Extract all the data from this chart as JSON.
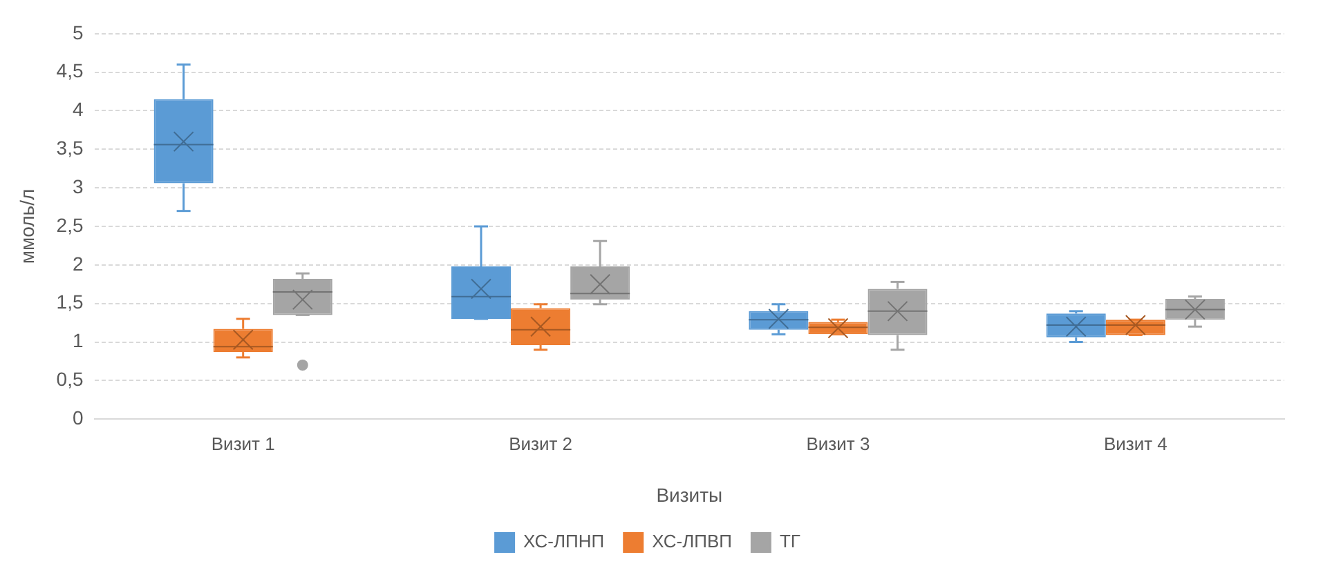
{
  "chart_data": {
    "type": "box",
    "xlabel": "Визиты",
    "ylabel": "ммоль/л",
    "categories": [
      "Визит 1",
      "Визит 2",
      "Визит 3",
      "Визит 4"
    ],
    "series": [
      {
        "name": "ХС-ЛПНП",
        "color": "#5b9bd5",
        "boxes": [
          {
            "low": 2.7,
            "q1": 3.06,
            "median": 3.56,
            "q3": 4.15,
            "high": 4.6,
            "mean": 3.6
          },
          {
            "low": 1.3,
            "q1": 1.3,
            "median": 1.59,
            "q3": 1.98,
            "high": 2.5,
            "mean": 1.69
          },
          {
            "low": 1.1,
            "q1": 1.16,
            "median": 1.29,
            "q3": 1.4,
            "high": 1.49,
            "mean": 1.3
          },
          {
            "low": 1.0,
            "q1": 1.06,
            "median": 1.22,
            "q3": 1.37,
            "high": 1.4,
            "mean": 1.2
          }
        ]
      },
      {
        "name": "ХС-ЛПВП",
        "color": "#ed7d31",
        "boxes": [
          {
            "low": 0.8,
            "q1": 0.87,
            "median": 0.94,
            "q3": 1.17,
            "high": 1.3,
            "mean": 1.03
          },
          {
            "low": 0.9,
            "q1": 0.96,
            "median": 1.16,
            "q3": 1.44,
            "high": 1.49,
            "mean": 1.2
          },
          {
            "low": 1.1,
            "q1": 1.1,
            "median": 1.19,
            "q3": 1.26,
            "high": 1.29,
            "mean": 1.18
          },
          {
            "low": 1.09,
            "q1": 1.09,
            "median": 1.22,
            "q3": 1.29,
            "high": 1.29,
            "mean": 1.22
          }
        ]
      },
      {
        "name": "ТГ",
        "color": "#a5a5a5",
        "boxes": [
          {
            "low": 1.35,
            "q1": 1.35,
            "median": 1.65,
            "q3": 1.82,
            "high": 1.89,
            "mean": 1.55,
            "outliers": [
              0.7
            ]
          },
          {
            "low": 1.49,
            "q1": 1.55,
            "median": 1.63,
            "q3": 1.98,
            "high": 2.31,
            "mean": 1.75
          },
          {
            "low": 0.9,
            "q1": 1.09,
            "median": 1.4,
            "q3": 1.69,
            "high": 1.78,
            "mean": 1.4
          },
          {
            "low": 1.2,
            "q1": 1.29,
            "median": 1.42,
            "q3": 1.56,
            "high": 1.59,
            "mean": 1.42
          }
        ]
      }
    ],
    "ylim": [
      0,
      5
    ],
    "yticks": [
      0,
      {
        "value": 0.5,
        "label": "0,5"
      },
      1,
      {
        "value": 1.5,
        "label": "1,5"
      },
      2,
      {
        "value": 2.5,
        "label": "2,5"
      },
      3,
      {
        "value": 3.5,
        "label": "3,5"
      },
      4,
      {
        "value": 4.5,
        "label": "4,5"
      },
      5
    ],
    "grid": "y",
    "legend": "bottom"
  }
}
